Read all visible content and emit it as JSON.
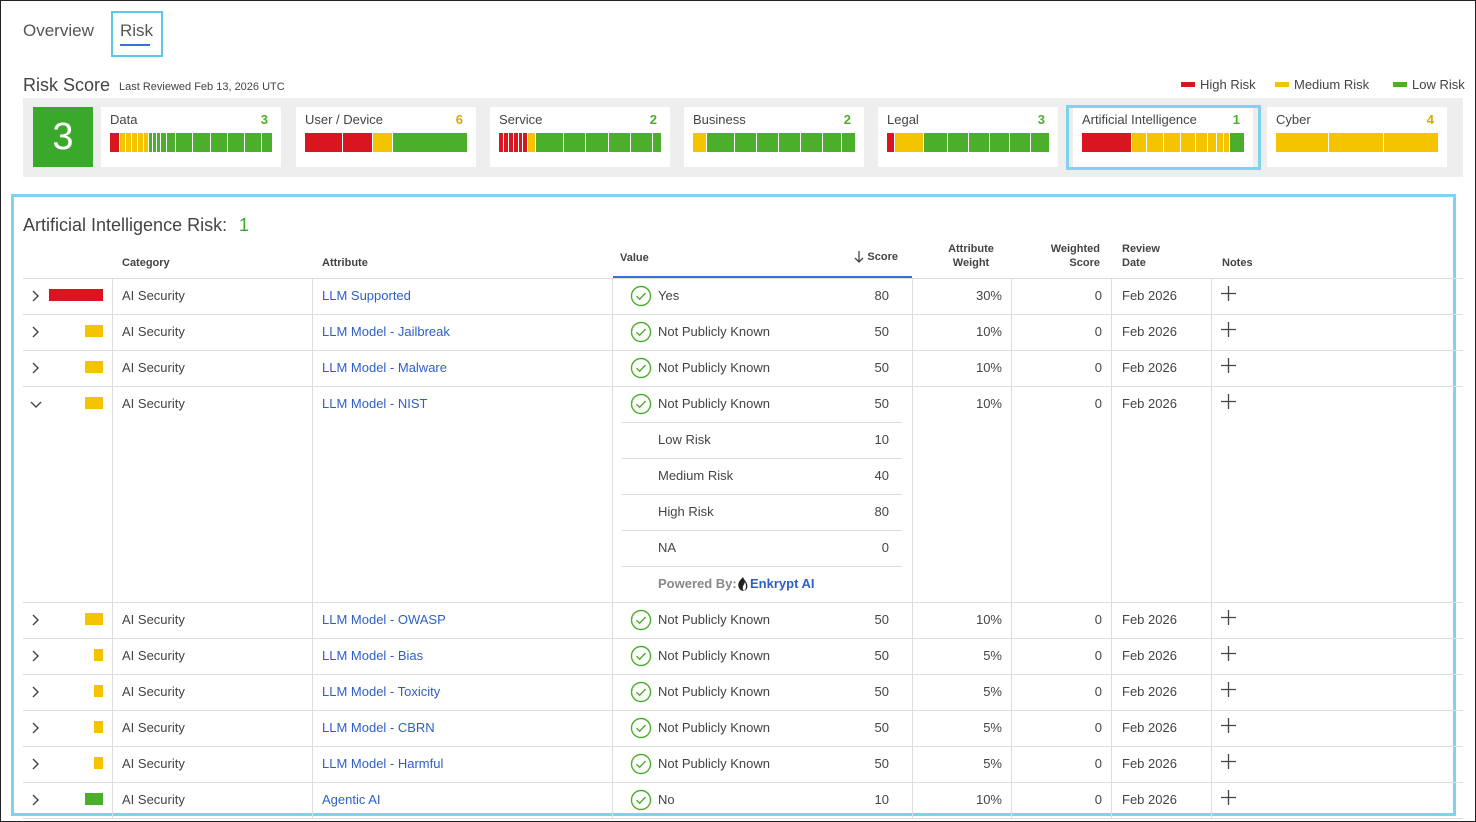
{
  "tabs": [
    "Overview",
    "Risk"
  ],
  "risk_score": {
    "title": "Risk Score",
    "last_reviewed": "Last Reviewed Feb 13, 2026 UTC",
    "overall": 3,
    "legend": [
      "High Risk",
      "Medium Risk",
      "Low Risk"
    ],
    "cards": [
      {
        "name": "Data",
        "score": 3
      },
      {
        "name": "User / Device",
        "score": 6
      },
      {
        "name": "Service",
        "score": 2
      },
      {
        "name": "Business",
        "score": 2
      },
      {
        "name": "Legal",
        "score": 3
      },
      {
        "name": "Artificial Intelligence",
        "score": 1
      },
      {
        "name": "Cyber",
        "score": 4
      }
    ]
  },
  "detail": {
    "title": "Artificial Intelligence Risk:",
    "score": 1,
    "columns": [
      "Category",
      "Attribute",
      "Value",
      "Score",
      "Attribute Weight",
      "Weighted Score",
      "Review Date",
      "Notes"
    ],
    "rows": [
      {
        "category": "AI Security",
        "attribute": "LLM Supported",
        "value": "Yes",
        "score": 80,
        "weight": "30%",
        "weighted_score": 0,
        "review_date": "Feb 2026"
      },
      {
        "category": "AI Security",
        "attribute": "LLM Model - Jailbreak",
        "value": "Not Publicly Known",
        "score": 50,
        "weight": "10%",
        "weighted_score": 0,
        "review_date": "Feb 2026"
      },
      {
        "category": "AI Security",
        "attribute": "LLM Model - Malware",
        "value": "Not Publicly Known",
        "score": 50,
        "weight": "10%",
        "weighted_score": 0,
        "review_date": "Feb 2026"
      },
      {
        "category": "AI Security",
        "attribute": "LLM Model - NIST",
        "value": "Not Publicly Known",
        "score": 50,
        "weight": "10%",
        "weighted_score": 0,
        "review_date": "Feb 2026",
        "breakdown": [
          {
            "label": "Low Risk",
            "score": 10
          },
          {
            "label": "Medium Risk",
            "score": 40
          },
          {
            "label": "High Risk",
            "score": 80
          },
          {
            "label": "NA",
            "score": 0
          }
        ],
        "powered_by": "Powered By:",
        "vendor": "Enkrypt AI"
      },
      {
        "category": "AI Security",
        "attribute": "LLM Model - OWASP",
        "value": "Not Publicly Known",
        "score": 50,
        "weight": "10%",
        "weighted_score": 0,
        "review_date": "Feb 2026"
      },
      {
        "category": "AI Security",
        "attribute": "LLM Model - Bias",
        "value": "Not Publicly Known",
        "score": 50,
        "weight": "5%",
        "weighted_score": 0,
        "review_date": "Feb 2026"
      },
      {
        "category": "AI Security",
        "attribute": "LLM Model - Toxicity",
        "value": "Not Publicly Known",
        "score": 50,
        "weight": "5%",
        "weighted_score": 0,
        "review_date": "Feb 2026"
      },
      {
        "category": "AI Security",
        "attribute": "LLM Model - CBRN",
        "value": "Not Publicly Known",
        "score": 50,
        "weight": "5%",
        "weighted_score": 0,
        "review_date": "Feb 2026"
      },
      {
        "category": "AI Security",
        "attribute": "LLM Model - Harmful",
        "value": "Not Publicly Known",
        "score": 50,
        "weight": "5%",
        "weighted_score": 0,
        "review_date": "Feb 2026"
      },
      {
        "category": "AI Security",
        "attribute": "Agentic AI",
        "value": "No",
        "score": 10,
        "weight": "10%",
        "weighted_score": 0,
        "review_date": "Feb 2026"
      }
    ]
  }
}
